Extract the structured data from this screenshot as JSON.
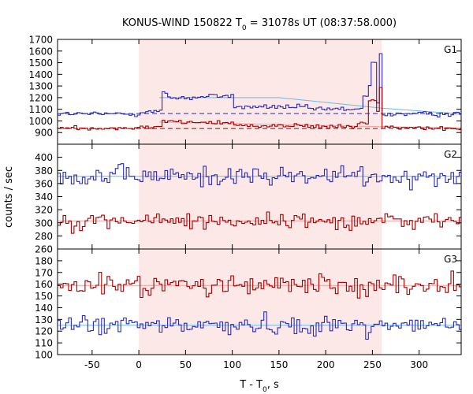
{
  "chart_data": {
    "type": "line",
    "title_main": "KONUS-WIND 150822 T",
    "title_sub": "0",
    "title_rest": " = 31078s UT (08:37:58.000)",
    "xlabel_main": "T - T",
    "xlabel_sub": "0",
    "xlabel_rest": ", s",
    "ylabel": "counts / sec",
    "xlim": [
      -87,
      345
    ],
    "x_ticks": [
      -50,
      0,
      50,
      100,
      150,
      200,
      250,
      300
    ],
    "x_tick_labels": [
      "-50",
      "0",
      "50",
      "100",
      "150",
      "200",
      "250",
      "300"
    ],
    "highlight_interval": [
      0,
      260
    ],
    "highlight_color": "#fde8e8",
    "bin_width": 2.944,
    "panels": [
      {
        "label": "G1",
        "ylim": [
          800,
          1700
        ],
        "y_ticks": [
          900,
          1000,
          1100,
          1200,
          1300,
          1400,
          1500,
          1600,
          1700
        ],
        "y_tick_labels": [
          "900",
          "1000",
          "1100",
          "1200",
          "1300",
          "1400",
          "1500",
          "1600",
          "1700"
        ],
        "series": [
          {
            "color": "#2b2bb0",
            "background": 1060,
            "noise": 14,
            "features": [
              {
                "from": 0,
                "to": 22,
                "value": 1080
              },
              {
                "from": 22,
                "to": 30,
                "value": 1240
              },
              {
                "from": 30,
                "to": 70,
                "value": 1200
              },
              {
                "from": 70,
                "to": 100,
                "value": 1215
              },
              {
                "from": 100,
                "to": 180,
                "value": 1120
              },
              {
                "from": 180,
                "to": 232,
                "value": 1100
              },
              {
                "from": 232,
                "to": 238,
                "value": 1110
              },
              {
                "from": 238,
                "to": 245,
                "value": 1200
              },
              {
                "from": 245,
                "to": 248,
                "value": 1300
              },
              {
                "from": 248,
                "to": 252,
                "value": 1500
              },
              {
                "from": 252,
                "to": 256,
                "value": 1160
              },
              {
                "from": 256,
                "to": 260,
                "value": 1560
              }
            ]
          },
          {
            "color": "#a00000",
            "background": 940,
            "noise": 12,
            "features": [
              {
                "from": 0,
                "to": 22,
                "value": 955
              },
              {
                "from": 22,
                "to": 40,
                "value": 1000
              },
              {
                "from": 40,
                "to": 100,
                "value": 985
              },
              {
                "from": 100,
                "to": 180,
                "value": 960
              },
              {
                "from": 180,
                "to": 232,
                "value": 950
              },
              {
                "from": 232,
                "to": 245,
                "value": 980
              },
              {
                "from": 245,
                "to": 252,
                "value": 1180
              },
              {
                "from": 252,
                "to": 256,
                "value": 1080
              },
              {
                "from": 256,
                "to": 260,
                "value": 1290
              }
            ]
          }
        ],
        "fits": [
          {
            "color": "#6bb8e8",
            "points": [
              [
                22,
                1200
              ],
              [
                150,
                1200
              ],
              [
                260,
                1110
              ],
              [
                345,
                1060
              ]
            ]
          },
          {
            "color": "#f0a0a0",
            "points": [
              [
                22,
                990
              ],
              [
                150,
                970
              ],
              [
                260,
                950
              ],
              [
                345,
                940
              ]
            ]
          },
          {
            "color": "#2b2bb0",
            "dashed": true,
            "points": [
              [
                -87,
                1063
              ],
              [
                345,
                1063
              ]
            ]
          },
          {
            "color": "#a00000",
            "dashed": true,
            "points": [
              [
                -87,
                935
              ],
              [
                345,
                935
              ]
            ]
          }
        ]
      },
      {
        "label": "G2",
        "ylim": [
          260,
          420
        ],
        "y_ticks": [
          260,
          280,
          300,
          320,
          340,
          360,
          380,
          400
        ],
        "y_tick_labels": [
          "260",
          "280",
          "300",
          "320",
          "340",
          "360",
          "380",
          "400"
        ],
        "series": [
          {
            "color": "#2b2bb0",
            "background": 371,
            "noise": 11,
            "features": []
          },
          {
            "color": "#a00000",
            "background": 303,
            "noise": 9,
            "features": []
          }
        ],
        "fits": [
          {
            "color": "#6bb8e8",
            "points": [
              [
                -87,
                371
              ],
              [
                345,
                371
              ]
            ]
          },
          {
            "color": "#f0a0a0",
            "points": [
              [
                -87,
                303
              ],
              [
                345,
                303
              ]
            ]
          }
        ]
      },
      {
        "label": "G3",
        "ylim": [
          100,
          190
        ],
        "y_ticks": [
          100,
          110,
          120,
          130,
          140,
          150,
          160,
          170,
          180
        ],
        "y_tick_labels": [
          "100",
          "110",
          "120",
          "130",
          "140",
          "150",
          "160",
          "170",
          "180"
        ],
        "series": [
          {
            "color": "#a00000",
            "background": 159,
            "noise": 6.5,
            "features": []
          },
          {
            "color": "#2b2bb0",
            "background": 125,
            "noise": 5.5,
            "features": []
          }
        ],
        "fits": [
          {
            "color": "#f0a0a0",
            "points": [
              [
                -87,
                159
              ],
              [
                345,
                159
              ]
            ]
          },
          {
            "color": "#6bb8e8",
            "points": [
              [
                -87,
                125
              ],
              [
                345,
                125
              ]
            ]
          }
        ]
      }
    ]
  }
}
